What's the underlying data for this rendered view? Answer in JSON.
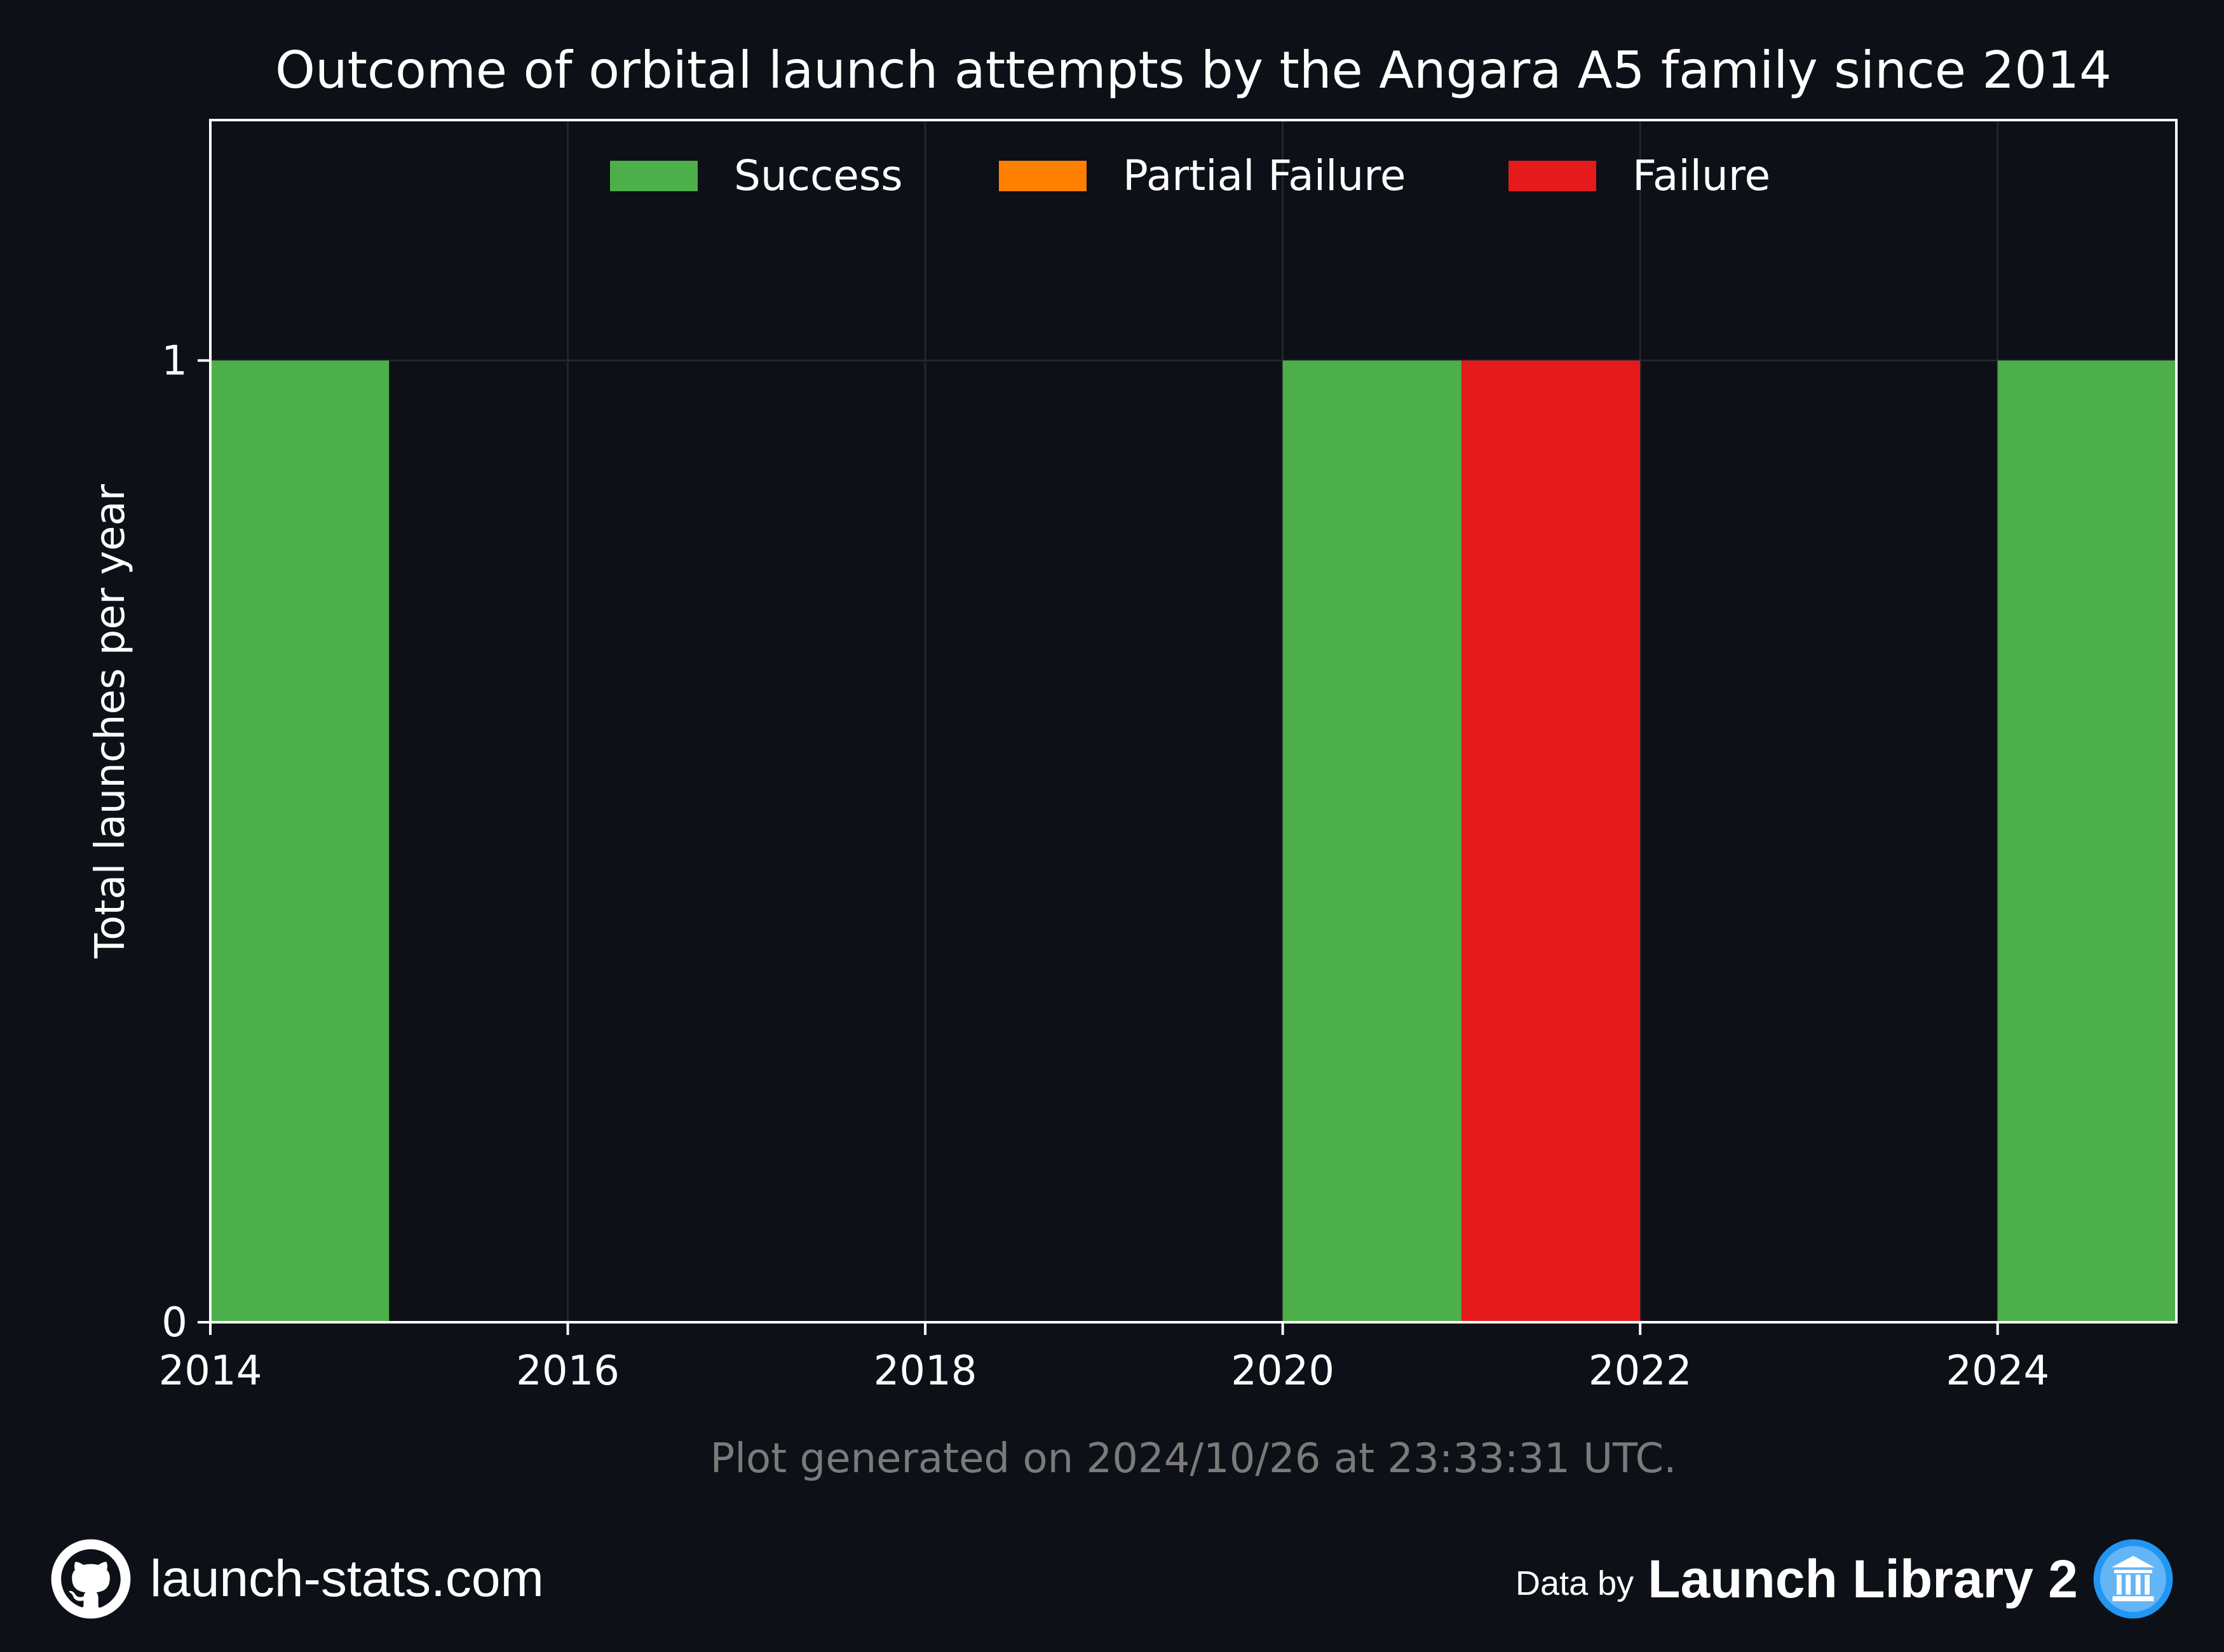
{
  "chart_data": {
    "type": "bar",
    "title": "Outcome of orbital launch attempts by the Angara A5 family since 2014",
    "ylabel": "Total launches per year",
    "xlabel": "",
    "x_range": [
      2014,
      2025
    ],
    "ylim": [
      0,
      1.25
    ],
    "x_ticks": [
      "2014",
      "2016",
      "2018",
      "2020",
      "2022",
      "2024"
    ],
    "y_ticks": [
      "0",
      "1"
    ],
    "categories": [
      2014,
      2015,
      2016,
      2017,
      2018,
      2019,
      2020,
      2021,
      2022,
      2023,
      2024
    ],
    "series": [
      {
        "name": "Success",
        "color": "#4daf4a",
        "values": [
          1,
          0,
          0,
          0,
          0,
          0,
          1,
          0,
          0,
          0,
          1
        ]
      },
      {
        "name": "Partial Failure",
        "color": "#ff7f00",
        "values": [
          0,
          0,
          0,
          0,
          0,
          0,
          0,
          0,
          0,
          0,
          0
        ]
      },
      {
        "name": "Failure",
        "color": "#e41a1c",
        "values": [
          0,
          0,
          0,
          0,
          0,
          0,
          0,
          1,
          0,
          0,
          0
        ]
      }
    ],
    "stacked": true,
    "grid": true,
    "legend_position": "top-center"
  },
  "footnote": "Plot generated on 2024/10/26 at 23:33:31 UTC.",
  "footer": {
    "site": "launch-stats.com",
    "data_by": "Data by",
    "brand": "Launch Library 2",
    "github_icon": "github-icon",
    "library_icon": "launch-library-icon"
  },
  "colors": {
    "background": "#0d1017",
    "footnote": "#7a7a7a",
    "grid": "#22262e"
  }
}
